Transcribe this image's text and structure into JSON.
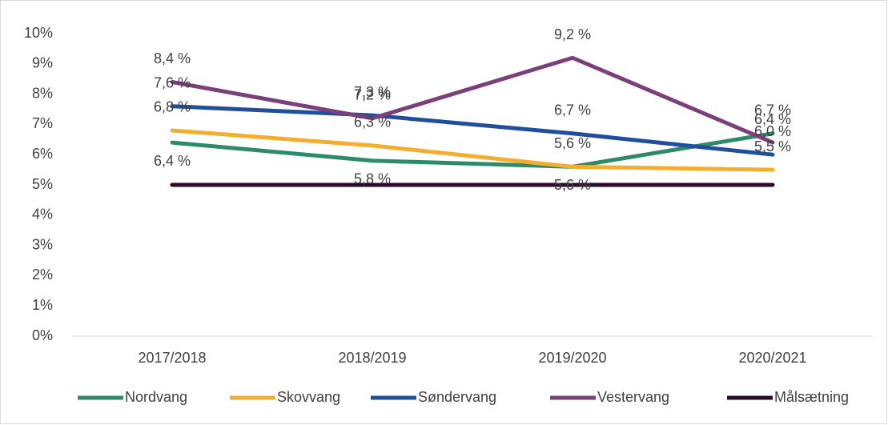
{
  "chart_data": {
    "type": "line",
    "categories": [
      "2017/2018",
      "2018/2019",
      "2019/2020",
      "2020/2021"
    ],
    "series": [
      {
        "name": "Nordvang",
        "color": "#2e8b6a",
        "values": [
          6.4,
          5.8,
          5.6,
          6.7
        ],
        "value_labels": [
          "6,4 %",
          "5,8 %",
          "5,6 %",
          "6,7 %"
        ]
      },
      {
        "name": "Skovvang",
        "color": "#f4ae2f",
        "values": [
          6.8,
          6.3,
          5.6,
          5.5
        ],
        "value_labels": [
          "6,8 %",
          "6,3 %",
          "5,6 %",
          "5,5 %"
        ]
      },
      {
        "name": "Søndervang",
        "color": "#1f4e9a",
        "values": [
          7.6,
          7.3,
          6.7,
          6.0
        ],
        "value_labels": [
          "7,6 %",
          "7,3 %",
          "6,7 %",
          "6,0 %"
        ]
      },
      {
        "name": "Vestervang",
        "color": "#7b3f7c",
        "values": [
          8.4,
          7.2,
          9.2,
          6.4
        ],
        "value_labels": [
          "8,4 %",
          "7,2 %",
          "9,2 %",
          "6,4 %"
        ]
      },
      {
        "name": "Målsætning",
        "color": "#2a0a2a",
        "values": [
          5,
          5,
          5,
          5
        ]
      }
    ],
    "ylim": [
      0,
      10
    ],
    "yticks": [
      {
        "value": 0,
        "label": "0%"
      },
      {
        "value": 1,
        "label": "1%"
      },
      {
        "value": 2,
        "label": "2%"
      },
      {
        "value": 3,
        "label": "3%"
      },
      {
        "value": 4,
        "label": "4%"
      },
      {
        "value": 5,
        "label": "5%"
      },
      {
        "value": 6,
        "label": "6%"
      },
      {
        "value": 7,
        "label": "7%"
      },
      {
        "value": 8,
        "label": "8%"
      },
      {
        "value": 9,
        "label": "9%"
      },
      {
        "value": 10,
        "label": "10%"
      }
    ],
    "legend": "bottom"
  }
}
